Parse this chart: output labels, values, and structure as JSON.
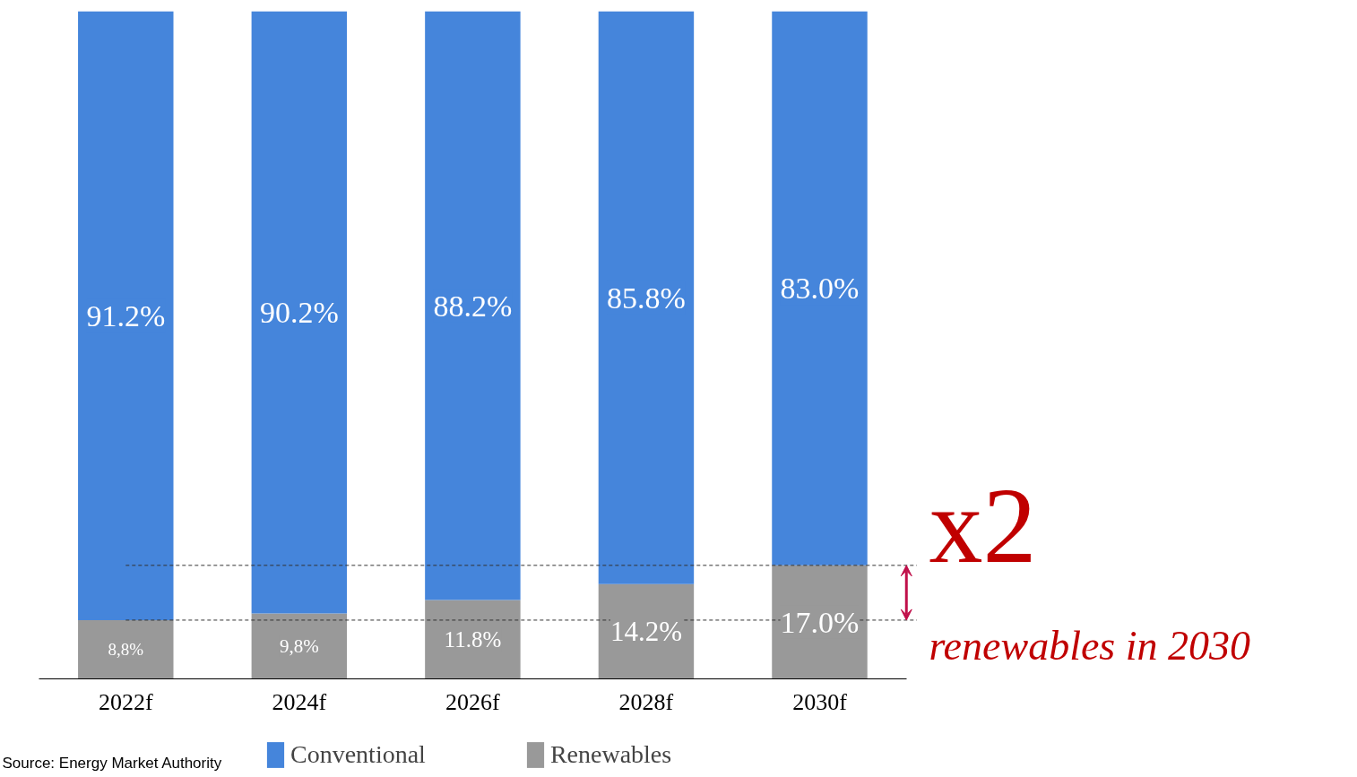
{
  "chart_data": {
    "type": "bar",
    "stacked": true,
    "categories": [
      "2022f",
      "2024f",
      "2026f",
      "2028f",
      "2030f"
    ],
    "series": [
      {
        "name": "Renewables",
        "color": "#999999",
        "values": [
          8.8,
          9.8,
          11.8,
          14.2,
          17.0
        ],
        "value_labels": [
          "8,8%",
          "9,8%",
          "11.8%",
          "14.2%",
          "17.0%"
        ]
      },
      {
        "name": "Conventional",
        "color": "#4585db",
        "values": [
          91.2,
          90.2,
          88.2,
          85.8,
          83.0
        ],
        "value_labels": [
          "91.2%",
          "90.2%",
          "88.2%",
          "85.8%",
          "83.0%"
        ]
      }
    ],
    "ylim": [
      0,
      100
    ],
    "tick_labels": "x",
    "grid": false,
    "legend": "bottom",
    "ref_lines": [
      {
        "axis": "y",
        "value": 8.8,
        "label": null,
        "line_style": "dashed",
        "color": "#333333"
      },
      {
        "axis": "y",
        "value": 17.0,
        "label": null,
        "line_style": "dashed",
        "color": "#333333"
      }
    ],
    "annotations": [
      "x2",
      "renewables in 2030",
      "Source: Energy Market Authority"
    ]
  }
}
